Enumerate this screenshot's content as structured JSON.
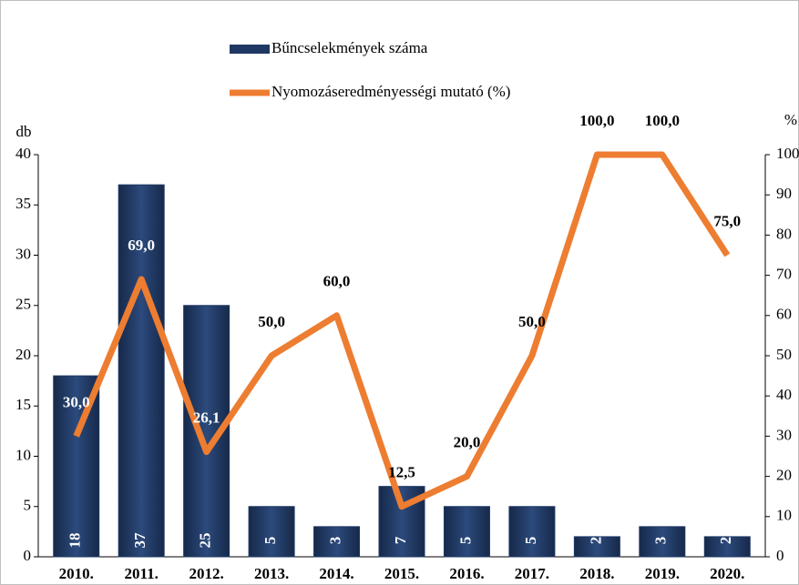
{
  "chart_data": {
    "type": "bar-line",
    "categories": [
      "2010.",
      "2011.",
      "2012.",
      "2013.",
      "2014.",
      "2015.",
      "2016.",
      "2017.",
      "2018.",
      "2019.",
      "2020."
    ],
    "series": [
      {
        "name": "Bűncselekmények száma",
        "type": "bar",
        "color": "#1f3864",
        "axis": "y",
        "values": [
          18,
          37,
          25,
          5,
          3,
          7,
          5,
          5,
          2,
          3,
          2
        ]
      },
      {
        "name": "Nyomozáseredményességi mutató (%)",
        "type": "line",
        "color": "#ed7d31",
        "axis": "y2",
        "values": [
          30,
          69,
          26.1,
          50,
          60,
          12.5,
          20,
          50,
          100,
          100,
          75
        ],
        "value_labels": [
          "30,0",
          "69,0",
          "26,1",
          "50,0",
          "60,0",
          "12,5",
          "20,0",
          "50,0",
          "100,0",
          "100,0",
          "75,0"
        ]
      }
    ],
    "y_label": "db",
    "y2_label": "%",
    "ylim": [
      0,
      40
    ],
    "yticks": [
      0,
      5,
      10,
      15,
      20,
      25,
      30,
      35,
      40
    ],
    "y2lim": [
      0,
      100
    ],
    "y2ticks": [
      0,
      10,
      20,
      30,
      40,
      50,
      60,
      70,
      80,
      90,
      100
    ],
    "legend": "top",
    "grid": false
  }
}
